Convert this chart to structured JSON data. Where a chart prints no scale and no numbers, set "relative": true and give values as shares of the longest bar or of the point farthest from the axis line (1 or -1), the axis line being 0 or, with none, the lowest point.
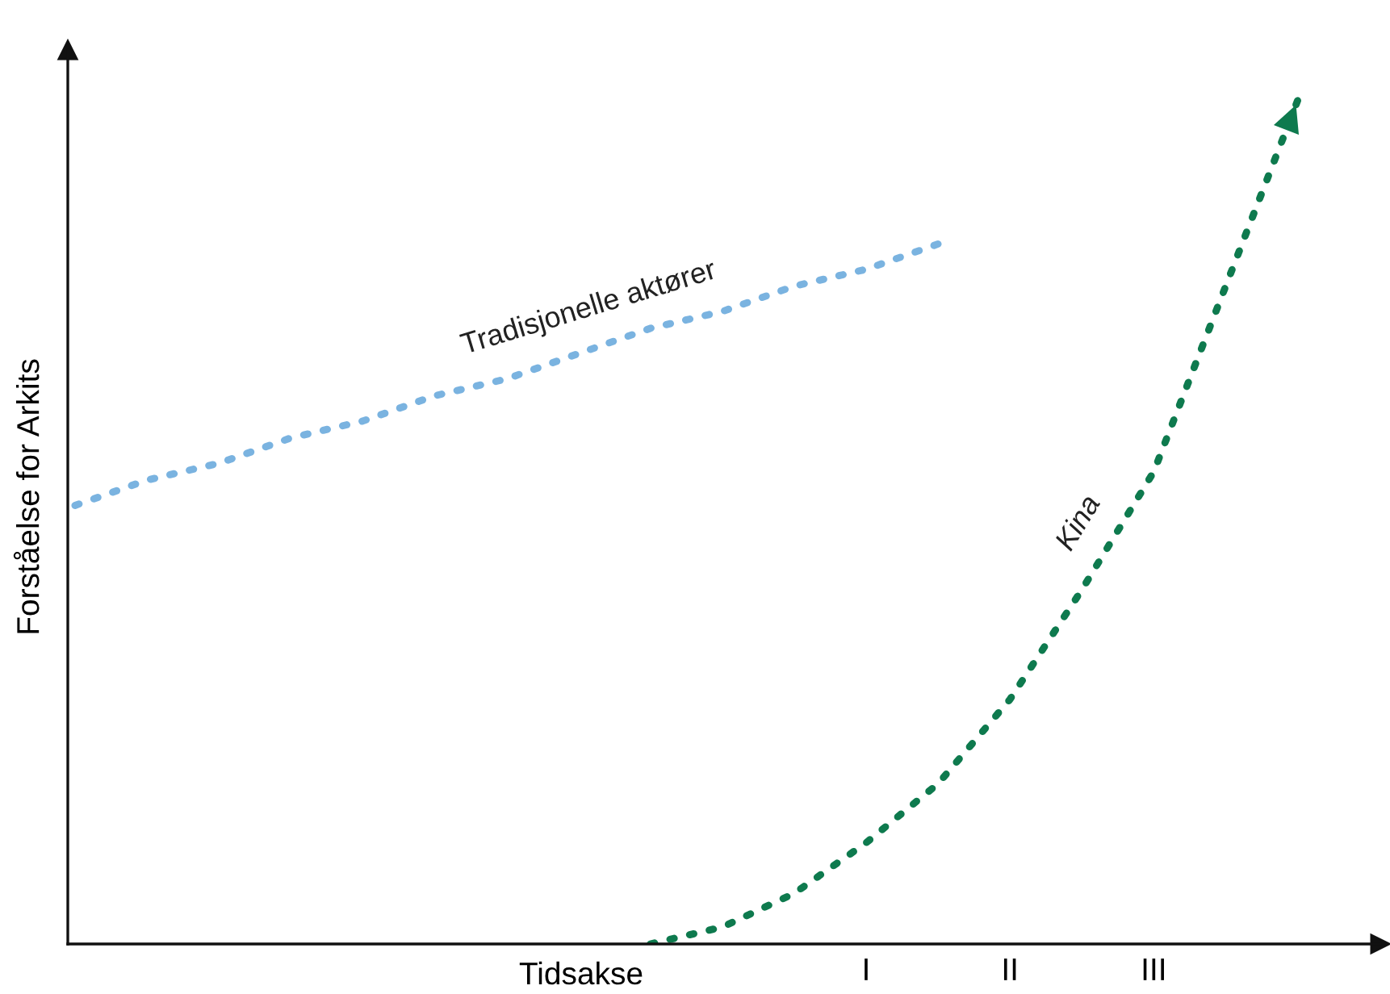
{
  "chart_data": {
    "type": "line",
    "relative": true,
    "xlabel": "Tidsakse",
    "ylabel": "Forståelse for Arkits",
    "categories": [
      null,
      null,
      null,
      null,
      null,
      null,
      null,
      null,
      null,
      null,
      null,
      "I",
      null,
      "II",
      null,
      "III",
      null,
      null
    ],
    "line_style": "dotted",
    "marker": "none",
    "grid": false,
    "series": [
      {
        "name": "Tradisjonelle aktører",
        "color": "#7ab3e0",
        "values": [
          0.52,
          0.55,
          0.57,
          0.6,
          0.62,
          0.65,
          0.67,
          0.7,
          0.73,
          0.75,
          0.78,
          0.8,
          0.83,
          null,
          null,
          null,
          null,
          null
        ]
      },
      {
        "name": "Kina",
        "color": "#0e7a4e",
        "values": [
          null,
          null,
          null,
          null,
          null,
          null,
          null,
          null,
          0,
          0.02,
          0.06,
          0.12,
          0.19,
          0.29,
          0.42,
          0.56,
          0.78,
          1.0
        ]
      }
    ]
  }
}
